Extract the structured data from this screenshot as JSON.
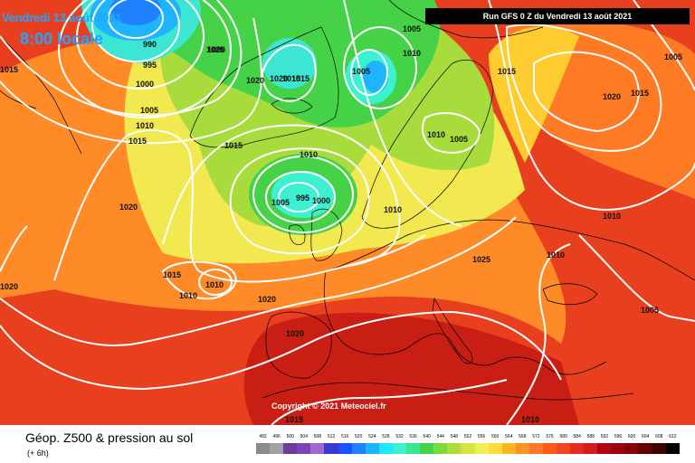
{
  "header": {
    "date": "Vendredi 13 août 2021",
    "local_time": "8:00 locale",
    "run_info": "Run GFS 0 Z du Vendredi 13 août 2021"
  },
  "footer": {
    "title": "Géop. Z500 & pression au sol",
    "subtitle": "(+ 6h)",
    "copyright": "Copyright © 2021 Meteociel.fr"
  },
  "colors": {
    "deep_blue": "#1ea6ff",
    "cyan": "#3fe0ff",
    "green": "#3fd23f",
    "yellow": "#f0f05a",
    "orange": "#ff9428",
    "red": "#e82a1e",
    "dark_red": "#b40014"
  },
  "isobar_labels": [
    "990",
    "995",
    "1000",
    "1005",
    "1010",
    "1015",
    "1020",
    "1025",
    "1010",
    "1005",
    "1015",
    "1020",
    "1015",
    "1010",
    "1015",
    "1020",
    "1010",
    "1020",
    "1005",
    "1000",
    "995",
    "1010",
    "1015",
    "1025",
    "1020",
    "1005",
    "1010",
    "1015",
    "1010",
    "1005",
    "1010",
    "1015",
    "1000",
    "1005",
    "1010",
    "1015",
    "1020",
    "1020",
    "1005",
    "1010",
    "1015"
  ],
  "scale": {
    "ticks": [
      "492",
      "496",
      "500",
      "504",
      "508",
      "512",
      "516",
      "520",
      "524",
      "528",
      "532",
      "536",
      "540",
      "544",
      "548",
      "552",
      "556",
      "560",
      "564",
      "568",
      "572",
      "576",
      "580",
      "584",
      "588",
      "592",
      "596",
      "600",
      "604",
      "608",
      "612"
    ],
    "colors": [
      "#8a8a8a",
      "#a0a0a0",
      "#6a3d9a",
      "#7b44b8",
      "#9b6ad0",
      "#3a3acd",
      "#1e50ff",
      "#1e82ff",
      "#1eb4ff",
      "#1ee6ff",
      "#3cf0d2",
      "#3ce68c",
      "#46d246",
      "#78dc3c",
      "#aadc3c",
      "#d2e63c",
      "#f0f05a",
      "#ffdc3c",
      "#ffb428",
      "#ff9428",
      "#ff7828",
      "#ff5a1e",
      "#f0461e",
      "#e82a1e",
      "#d21e1e",
      "#b40014",
      "#9a000f",
      "#82000a",
      "#640000",
      "#3c0000",
      "#000000"
    ]
  }
}
